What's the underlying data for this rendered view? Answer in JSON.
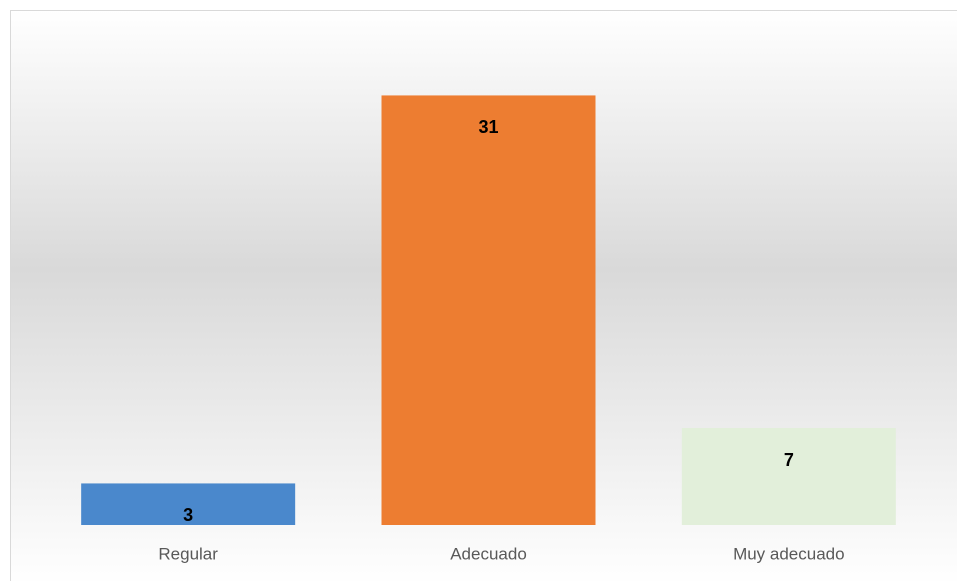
{
  "chart_data": {
    "type": "bar",
    "categories": [
      "Regular",
      "Adecuado",
      "Muy adecuado"
    ],
    "values": [
      3,
      31,
      7
    ],
    "colors": [
      "#4a88cc",
      "#ed7d31",
      "#e2efda"
    ],
    "ylim": [
      0,
      35
    ]
  }
}
